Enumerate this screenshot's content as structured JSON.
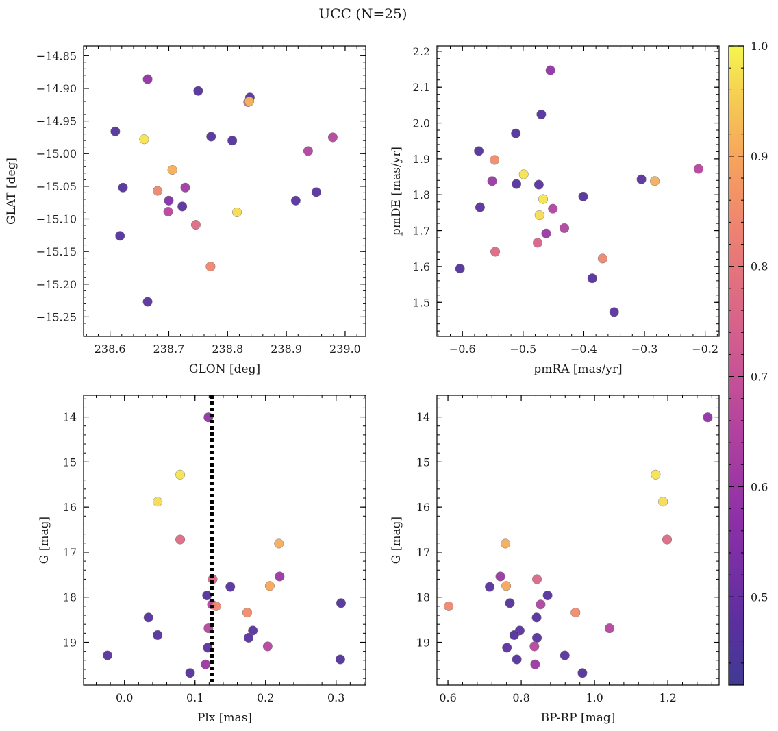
{
  "figure": {
    "title": "UCC (N=25)"
  },
  "colorbar": {
    "colormap": "plasma",
    "range": [
      0.42,
      1.0
    ],
    "ticks": [
      0.5,
      0.6,
      0.7,
      0.8,
      0.9,
      1.0
    ],
    "tick_labels": [
      "0.5",
      "0.6",
      "0.7",
      "0.8",
      "0.9",
      "1.0"
    ]
  },
  "chart_data": [
    {
      "type": "scatter",
      "id": "glon-glat",
      "xlabel": "GLON [deg]",
      "ylabel": "GLAT [deg]",
      "xlim": [
        238.555,
        239.035
      ],
      "ylim": [
        -15.28,
        -14.835
      ],
      "y_inverted": false,
      "xticks": [
        238.6,
        238.7,
        238.8,
        238.9,
        239.0
      ],
      "xtick_labels": [
        "238.6",
        "238.7",
        "238.8",
        "238.9",
        "239.0"
      ],
      "yticks": [
        -14.85,
        -14.9,
        -14.95,
        -15.0,
        -15.05,
        -15.1,
        -15.15,
        -15.2,
        -15.25
      ],
      "ytick_labels": [
        "−14.85",
        "−14.90",
        "−14.95",
        "−15.00",
        "−15.05",
        "−15.10",
        "−15.15",
        "−15.20",
        "−15.25"
      ],
      "points": [
        {
          "x": 238.664,
          "y": -14.886,
          "c": 0.58
        },
        {
          "x": 238.75,
          "y": -14.904,
          "c": 0.46
        },
        {
          "x": 238.838,
          "y": -14.914,
          "c": 0.47
        },
        {
          "x": 238.835,
          "y": -14.921,
          "c": 0.76
        },
        {
          "x": 238.837,
          "y": -14.92,
          "c": 0.92
        },
        {
          "x": 238.609,
          "y": -14.966,
          "c": 0.46
        },
        {
          "x": 238.658,
          "y": -14.978,
          "c": 0.98
        },
        {
          "x": 238.772,
          "y": -14.974,
          "c": 0.46
        },
        {
          "x": 238.808,
          "y": -14.98,
          "c": 0.46
        },
        {
          "x": 238.979,
          "y": -14.975,
          "c": 0.66
        },
        {
          "x": 238.937,
          "y": -14.996,
          "c": 0.65
        },
        {
          "x": 238.706,
          "y": -15.025,
          "c": 0.91
        },
        {
          "x": 238.622,
          "y": -15.052,
          "c": 0.46
        },
        {
          "x": 238.681,
          "y": -15.057,
          "c": 0.84
        },
        {
          "x": 238.728,
          "y": -15.052,
          "c": 0.61
        },
        {
          "x": 238.951,
          "y": -15.059,
          "c": 0.47
        },
        {
          "x": 238.7,
          "y": -15.072,
          "c": 0.55
        },
        {
          "x": 238.723,
          "y": -15.081,
          "c": 0.48
        },
        {
          "x": 238.916,
          "y": -15.072,
          "c": 0.47
        },
        {
          "x": 238.699,
          "y": -15.089,
          "c": 0.66
        },
        {
          "x": 238.816,
          "y": -15.09,
          "c": 0.97
        },
        {
          "x": 238.746,
          "y": -15.109,
          "c": 0.77
        },
        {
          "x": 238.617,
          "y": -15.126,
          "c": 0.46
        },
        {
          "x": 238.771,
          "y": -15.173,
          "c": 0.84
        },
        {
          "x": 238.664,
          "y": -15.227,
          "c": 0.47
        }
      ]
    },
    {
      "type": "scatter",
      "id": "pmra-pmde",
      "xlabel": "pmRA [mas/yr]",
      "ylabel": "pmDE [mas/yr]",
      "xlim": [
        -0.642,
        -0.177
      ],
      "ylim": [
        1.405,
        2.215
      ],
      "y_inverted": false,
      "xticks": [
        -0.6,
        -0.5,
        -0.4,
        -0.3,
        -0.2
      ],
      "xtick_labels": [
        "−0.6",
        "−0.5",
        "−0.4",
        "−0.3",
        "−0.2"
      ],
      "yticks": [
        1.5,
        1.6,
        1.7,
        1.8,
        1.9,
        2.0,
        2.1,
        2.2
      ],
      "ytick_labels": [
        "1.5",
        "1.6",
        "1.7",
        "1.8",
        "1.9",
        "2.0",
        "2.1",
        "2.2"
      ],
      "points": [
        {
          "x": -0.455,
          "y": 2.147,
          "c": 0.58
        },
        {
          "x": -0.47,
          "y": 2.024,
          "c": 0.46
        },
        {
          "x": -0.512,
          "y": 1.971,
          "c": 0.46
        },
        {
          "x": -0.573,
          "y": 1.922,
          "c": 0.46
        },
        {
          "x": -0.547,
          "y": 1.897,
          "c": 0.85
        },
        {
          "x": -0.499,
          "y": 1.857,
          "c": 0.98
        },
        {
          "x": -0.211,
          "y": 1.872,
          "c": 0.66
        },
        {
          "x": -0.305,
          "y": 1.843,
          "c": 0.47
        },
        {
          "x": -0.283,
          "y": 1.838,
          "c": 0.91
        },
        {
          "x": -0.551,
          "y": 1.838,
          "c": 0.6
        },
        {
          "x": -0.511,
          "y": 1.83,
          "c": 0.46
        },
        {
          "x": -0.474,
          "y": 1.828,
          "c": 0.47
        },
        {
          "x": -0.467,
          "y": 1.788,
          "c": 0.98
        },
        {
          "x": -0.401,
          "y": 1.795,
          "c": 0.46
        },
        {
          "x": -0.571,
          "y": 1.765,
          "c": 0.47
        },
        {
          "x": -0.451,
          "y": 1.761,
          "c": 0.65
        },
        {
          "x": -0.473,
          "y": 1.743,
          "c": 0.97
        },
        {
          "x": -0.432,
          "y": 1.707,
          "c": 0.65
        },
        {
          "x": -0.462,
          "y": 1.692,
          "c": 0.6
        },
        {
          "x": -0.476,
          "y": 1.666,
          "c": 0.75
        },
        {
          "x": -0.546,
          "y": 1.641,
          "c": 0.77
        },
        {
          "x": -0.369,
          "y": 1.622,
          "c": 0.84
        },
        {
          "x": -0.604,
          "y": 1.594,
          "c": 0.46
        },
        {
          "x": -0.386,
          "y": 1.567,
          "c": 0.46
        },
        {
          "x": -0.35,
          "y": 1.473,
          "c": 0.47
        }
      ]
    },
    {
      "type": "scatter",
      "id": "plx-g",
      "xlabel": "Plx [mas]",
      "ylabel": "G [mag]",
      "xlim": [
        -0.058,
        0.342
      ],
      "ylim": [
        13.52,
        19.95
      ],
      "y_inverted": true,
      "xticks": [
        0.0,
        0.1,
        0.2,
        0.3
      ],
      "xtick_labels": [
        "0.0",
        "0.1",
        "0.2",
        "0.3"
      ],
      "yticks": [
        14,
        15,
        16,
        17,
        18,
        19
      ],
      "ytick_labels": [
        "14",
        "15",
        "16",
        "17",
        "18",
        "19"
      ],
      "vline": {
        "x": 0.124,
        "style": "dotted",
        "color": "#000000"
      },
      "points": [
        {
          "x": 0.119,
          "y": 14.01,
          "c": 0.58
        },
        {
          "x": 0.079,
          "y": 15.28,
          "c": 0.98
        },
        {
          "x": 0.047,
          "y": 15.88,
          "c": 0.97
        },
        {
          "x": 0.079,
          "y": 16.72,
          "c": 0.77
        },
        {
          "x": 0.219,
          "y": 16.81,
          "c": 0.91
        },
        {
          "x": 0.22,
          "y": 17.54,
          "c": 0.6
        },
        {
          "x": 0.125,
          "y": 17.6,
          "c": 0.76
        },
        {
          "x": 0.15,
          "y": 17.77,
          "c": 0.47
        },
        {
          "x": 0.206,
          "y": 17.75,
          "c": 0.9
        },
        {
          "x": 0.117,
          "y": 17.96,
          "c": 0.46
        },
        {
          "x": 0.307,
          "y": 18.13,
          "c": 0.46
        },
        {
          "x": 0.124,
          "y": 18.16,
          "c": 0.65
        },
        {
          "x": 0.13,
          "y": 18.2,
          "c": 0.84
        },
        {
          "x": 0.174,
          "y": 18.34,
          "c": 0.85
        },
        {
          "x": 0.034,
          "y": 18.45,
          "c": 0.46
        },
        {
          "x": 0.119,
          "y": 18.69,
          "c": 0.66
        },
        {
          "x": 0.182,
          "y": 18.74,
          "c": 0.47
        },
        {
          "x": 0.047,
          "y": 18.84,
          "c": 0.46
        },
        {
          "x": 0.176,
          "y": 18.9,
          "c": 0.47
        },
        {
          "x": 0.203,
          "y": 19.09,
          "c": 0.66
        },
        {
          "x": 0.118,
          "y": 19.12,
          "c": 0.48
        },
        {
          "x": -0.024,
          "y": 19.29,
          "c": 0.47
        },
        {
          "x": 0.306,
          "y": 19.38,
          "c": 0.46
        },
        {
          "x": 0.115,
          "y": 19.49,
          "c": 0.6
        },
        {
          "x": 0.093,
          "y": 19.68,
          "c": 0.46
        }
      ]
    },
    {
      "type": "scatter",
      "id": "bprp-g",
      "xlabel": "BP-RP [mag]",
      "ylabel": "G [mag]",
      "xlim": [
        0.57,
        1.34
      ],
      "ylim": [
        13.52,
        19.95
      ],
      "y_inverted": true,
      "xticks": [
        0.6,
        0.8,
        1.0,
        1.2
      ],
      "xtick_labels": [
        "0.6",
        "0.8",
        "1.0",
        "1.2"
      ],
      "yticks": [
        14,
        15,
        16,
        17,
        18,
        19
      ],
      "ytick_labels": [
        "14",
        "15",
        "16",
        "17",
        "18",
        "19"
      ],
      "points": [
        {
          "x": 1.309,
          "y": 14.01,
          "c": 0.58
        },
        {
          "x": 1.167,
          "y": 15.28,
          "c": 0.98
        },
        {
          "x": 1.187,
          "y": 15.88,
          "c": 0.97
        },
        {
          "x": 1.198,
          "y": 16.72,
          "c": 0.77
        },
        {
          "x": 0.757,
          "y": 16.81,
          "c": 0.91
        },
        {
          "x": 0.743,
          "y": 17.54,
          "c": 0.6
        },
        {
          "x": 0.843,
          "y": 17.6,
          "c": 0.76
        },
        {
          "x": 0.714,
          "y": 17.77,
          "c": 0.47
        },
        {
          "x": 0.759,
          "y": 17.75,
          "c": 0.9
        },
        {
          "x": 0.872,
          "y": 17.96,
          "c": 0.46
        },
        {
          "x": 0.769,
          "y": 18.13,
          "c": 0.46
        },
        {
          "x": 0.853,
          "y": 18.16,
          "c": 0.65
        },
        {
          "x": 0.602,
          "y": 18.2,
          "c": 0.84
        },
        {
          "x": 0.948,
          "y": 18.34,
          "c": 0.85
        },
        {
          "x": 0.842,
          "y": 18.45,
          "c": 0.46
        },
        {
          "x": 1.041,
          "y": 18.69,
          "c": 0.66
        },
        {
          "x": 0.796,
          "y": 18.74,
          "c": 0.47
        },
        {
          "x": 0.781,
          "y": 18.84,
          "c": 0.46
        },
        {
          "x": 0.843,
          "y": 18.9,
          "c": 0.47
        },
        {
          "x": 0.836,
          "y": 19.09,
          "c": 0.66
        },
        {
          "x": 0.761,
          "y": 19.12,
          "c": 0.48
        },
        {
          "x": 0.919,
          "y": 19.29,
          "c": 0.47
        },
        {
          "x": 0.788,
          "y": 19.38,
          "c": 0.46
        },
        {
          "x": 0.838,
          "y": 19.49,
          "c": 0.6
        },
        {
          "x": 0.967,
          "y": 19.68,
          "c": 0.46
        }
      ]
    }
  ]
}
